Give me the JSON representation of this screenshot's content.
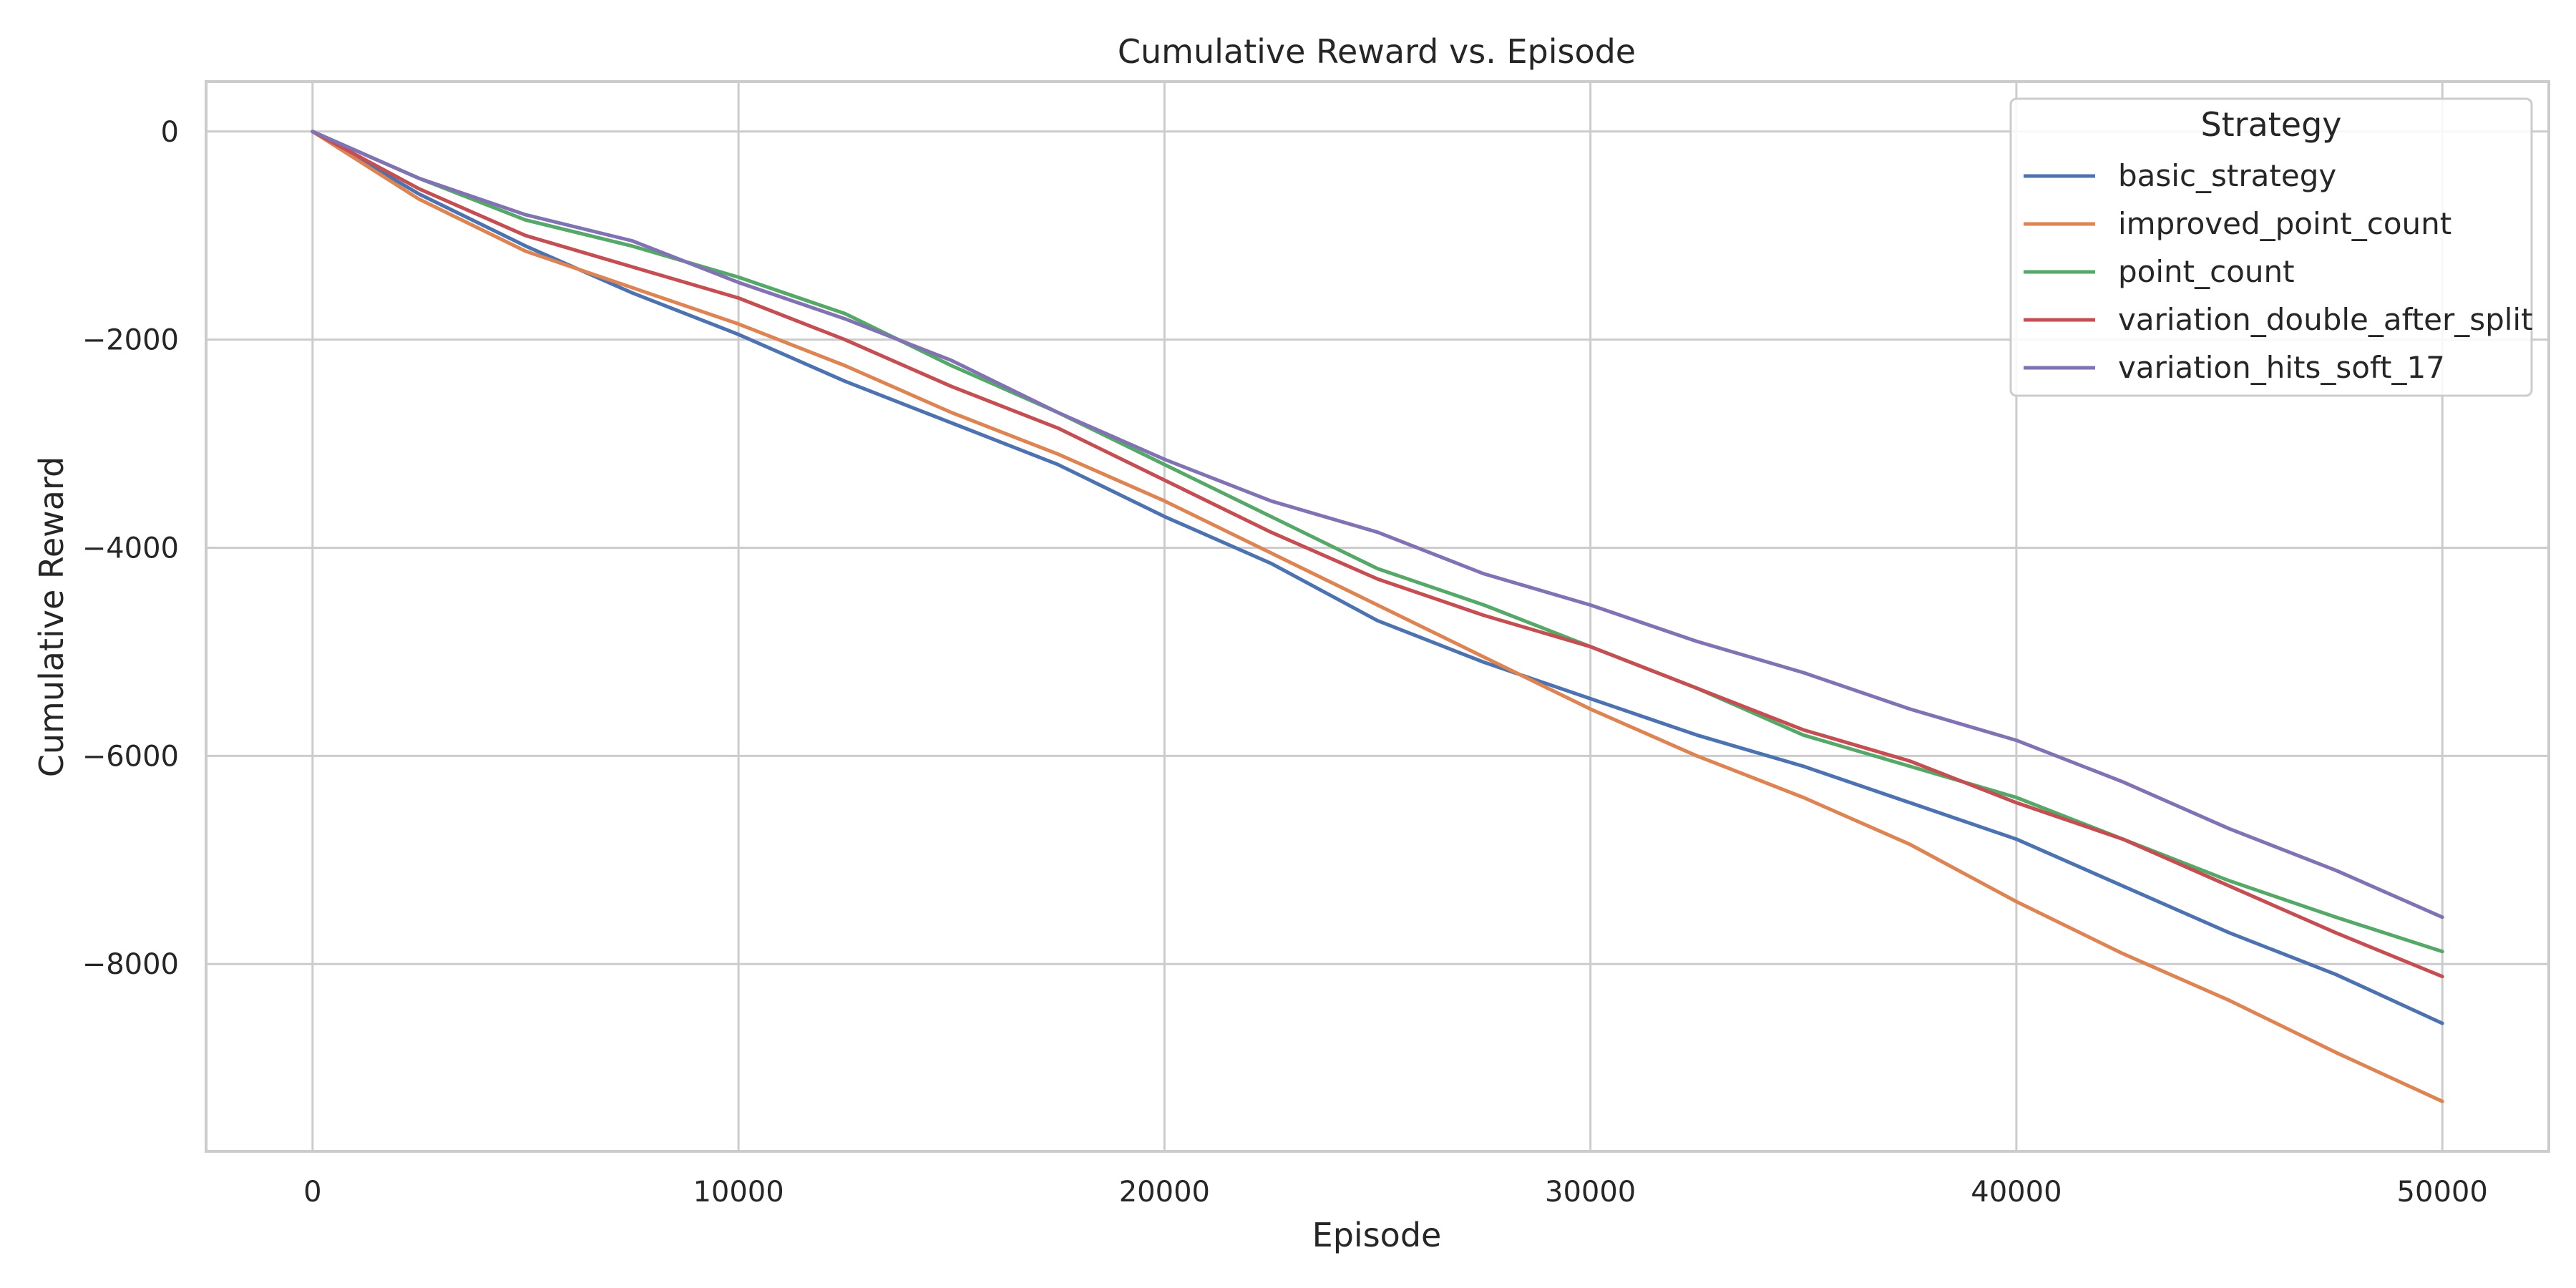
{
  "chart_data": {
    "type": "line",
    "title": "Cumulative Reward vs. Episode",
    "xlabel": "Episode",
    "ylabel": "Cumulative Reward",
    "xlim": [
      -2500,
      52500
    ],
    "ylim": [
      -9800,
      480
    ],
    "xticks": [
      0,
      10000,
      20000,
      30000,
      40000,
      50000
    ],
    "yticks": [
      0,
      -2000,
      -4000,
      -6000,
      -8000
    ],
    "grid": true,
    "legend": {
      "title": "Strategy",
      "placement": "top-right"
    },
    "x": [
      0,
      2500,
      5000,
      7500,
      10000,
      12500,
      15000,
      17500,
      20000,
      22500,
      25000,
      27500,
      30000,
      32500,
      35000,
      37500,
      40000,
      42500,
      45000,
      47500,
      50000
    ],
    "series": [
      {
        "name": "basic_strategy",
        "color": "#4c72b0",
        "values": [
          0,
          -600,
          -1100,
          -1550,
          -1950,
          -2400,
          -2800,
          -3200,
          -3700,
          -4150,
          -4700,
          -5100,
          -5450,
          -5800,
          -6100,
          -6450,
          -6800,
          -7250,
          -7700,
          -8100,
          -8570
        ]
      },
      {
        "name": "improved_point_count",
        "color": "#dd8452",
        "values": [
          0,
          -650,
          -1150,
          -1500,
          -1850,
          -2250,
          -2700,
          -3100,
          -3550,
          -4050,
          -4550,
          -5050,
          -5550,
          -6000,
          -6400,
          -6850,
          -7400,
          -7900,
          -8350,
          -8850,
          -9320
        ]
      },
      {
        "name": "point_count",
        "color": "#55a868",
        "values": [
          0,
          -450,
          -850,
          -1100,
          -1400,
          -1750,
          -2250,
          -2700,
          -3200,
          -3700,
          -4200,
          -4550,
          -4950,
          -5350,
          -5800,
          -6100,
          -6400,
          -6800,
          -7200,
          -7550,
          -7880
        ]
      },
      {
        "name": "variation_double_after_split",
        "color": "#c44e52",
        "values": [
          0,
          -550,
          -1000,
          -1300,
          -1600,
          -2000,
          -2450,
          -2850,
          -3350,
          -3850,
          -4300,
          -4650,
          -4950,
          -5350,
          -5750,
          -6050,
          -6450,
          -6800,
          -7250,
          -7700,
          -8120
        ]
      },
      {
        "name": "variation_hits_soft_17",
        "color": "#8172b3",
        "values": [
          0,
          -450,
          -800,
          -1050,
          -1450,
          -1800,
          -2200,
          -2700,
          -3150,
          -3550,
          -3850,
          -4250,
          -4550,
          -4900,
          -5200,
          -5550,
          -5850,
          -6250,
          -6700,
          -7100,
          -7550
        ]
      }
    ]
  }
}
